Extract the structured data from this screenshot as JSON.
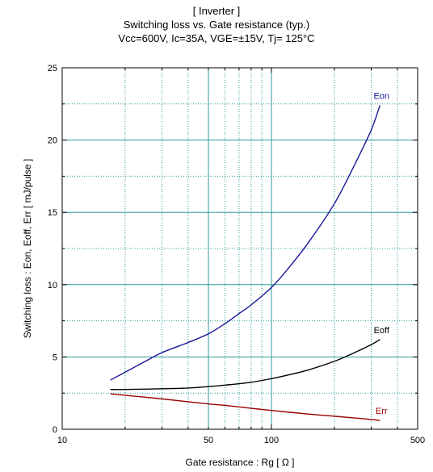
{
  "chart_data": {
    "type": "line",
    "title_lines": [
      "[ Inverter ]",
      "Switching loss  vs.  Gate resistance (typ.)",
      "Vcc=600V, Ic=35A, VGE=±15V, Tj= 125°C"
    ],
    "xlabel": "Gate resistance  :  Rg  [ Ω ]",
    "ylabel": "Switching loss  :  Eon, Eoff, Err  [ mJ/pulse ]",
    "x_scale": "log",
    "xlim": [
      10,
      500
    ],
    "ylim": [
      0,
      25
    ],
    "x_ticks": [
      10,
      50,
      100,
      500
    ],
    "x_tick_labels": [
      "10",
      "50",
      "100",
      "500"
    ],
    "y_ticks": [
      0,
      5,
      10,
      15,
      20,
      25
    ],
    "y_tick_labels": [
      "0",
      "5",
      "10",
      "15",
      "20",
      "25"
    ],
    "grid": true,
    "series": [
      {
        "name": "Eon",
        "color": "#1a1a99",
        "x": [
          17,
          20,
          25,
          30,
          40,
          50,
          60,
          70,
          80,
          100,
          120,
          150,
          200,
          250,
          300,
          330
        ],
        "y": [
          3.4,
          3.95,
          4.7,
          5.3,
          6.0,
          6.6,
          7.3,
          8.0,
          8.6,
          9.8,
          11.1,
          12.9,
          15.6,
          18.3,
          20.7,
          22.4
        ]
      },
      {
        "name": "Eoff",
        "color": "#000000",
        "x": [
          17,
          20,
          30,
          40,
          50,
          60,
          80,
          100,
          120,
          150,
          200,
          250,
          300,
          330
        ],
        "y": [
          2.75,
          2.75,
          2.8,
          2.85,
          2.95,
          3.05,
          3.25,
          3.5,
          3.75,
          4.1,
          4.7,
          5.3,
          5.85,
          6.2
        ]
      },
      {
        "name": "Err",
        "color": "#990000",
        "x": [
          17,
          20,
          30,
          40,
          50,
          60,
          80,
          100,
          150,
          200,
          250,
          300,
          330
        ],
        "y": [
          2.45,
          2.35,
          2.1,
          1.9,
          1.75,
          1.65,
          1.45,
          1.3,
          1.05,
          0.9,
          0.78,
          0.68,
          0.6
        ]
      }
    ]
  }
}
